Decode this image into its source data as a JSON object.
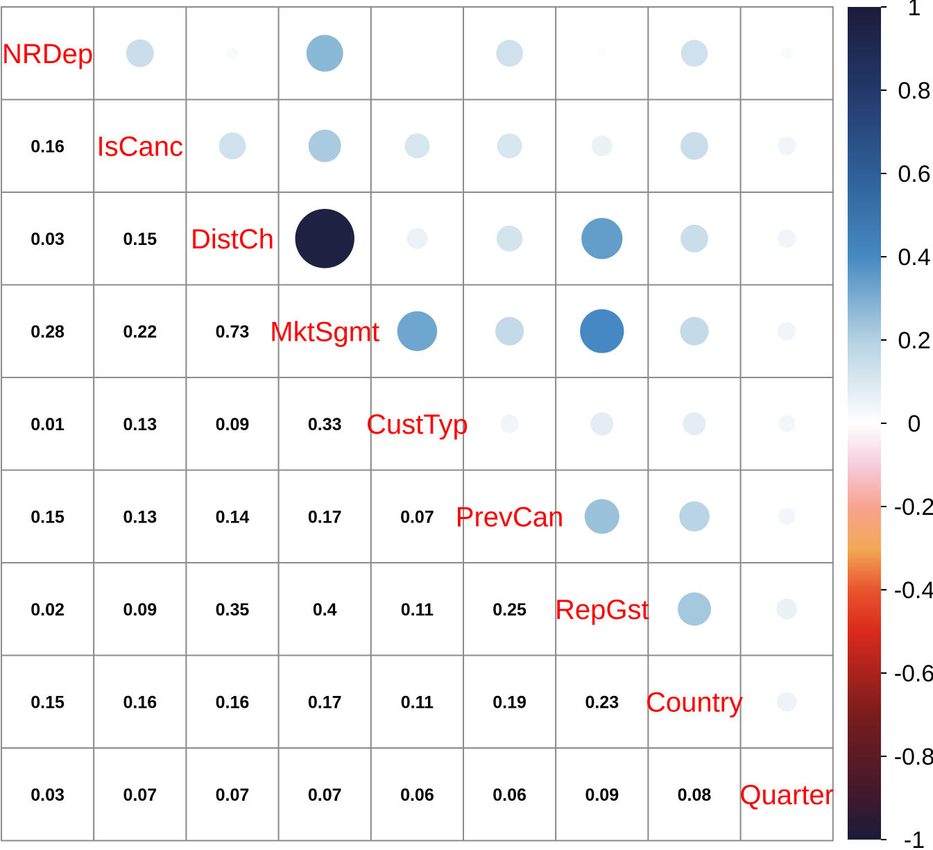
{
  "chart_data": {
    "type": "heatmap",
    "subtype": "correlation-matrix",
    "variables": [
      "NRDep",
      "IsCanc",
      "DistCh",
      "MktSgmt",
      "CustTyp",
      "PrevCan",
      "RepGst",
      "Country",
      "Quarter"
    ],
    "matrix": [
      [
        1.0,
        0.16,
        0.03,
        0.28,
        0.01,
        0.15,
        0.02,
        0.15,
        0.03
      ],
      [
        0.16,
        1.0,
        0.15,
        0.22,
        0.13,
        0.13,
        0.09,
        0.16,
        0.07
      ],
      [
        0.03,
        0.15,
        1.0,
        0.73,
        0.09,
        0.14,
        0.35,
        0.16,
        0.07
      ],
      [
        0.28,
        0.22,
        0.73,
        1.0,
        0.33,
        0.17,
        0.4,
        0.17,
        0.07
      ],
      [
        0.01,
        0.13,
        0.09,
        0.33,
        1.0,
        0.07,
        0.11,
        0.11,
        0.06
      ],
      [
        0.15,
        0.13,
        0.14,
        0.17,
        0.07,
        1.0,
        0.25,
        0.19,
        0.06
      ],
      [
        0.02,
        0.09,
        0.35,
        0.4,
        0.11,
        0.25,
        1.0,
        0.23,
        0.09
      ],
      [
        0.15,
        0.16,
        0.16,
        0.17,
        0.11,
        0.19,
        0.23,
        1.0,
        0.08
      ],
      [
        0.03,
        0.07,
        0.07,
        0.07,
        0.06,
        0.06,
        0.09,
        0.08,
        1.0
      ]
    ],
    "lower_triangle": "numbers",
    "upper_triangle": "circles",
    "diagonal": "variable names",
    "colorbar": {
      "range": [
        -1,
        1
      ],
      "ticks": [
        "1",
        "0.8",
        "0.6",
        "0.4",
        "0.2",
        "0",
        "-0.2",
        "-0.4",
        "-0.6",
        "-0.8",
        "-1"
      ]
    },
    "colors": {
      "diag_text": "#ff0000",
      "number_text": "#000000",
      "grid": "#8c8c8c",
      "border": "#8c8c8c"
    }
  }
}
